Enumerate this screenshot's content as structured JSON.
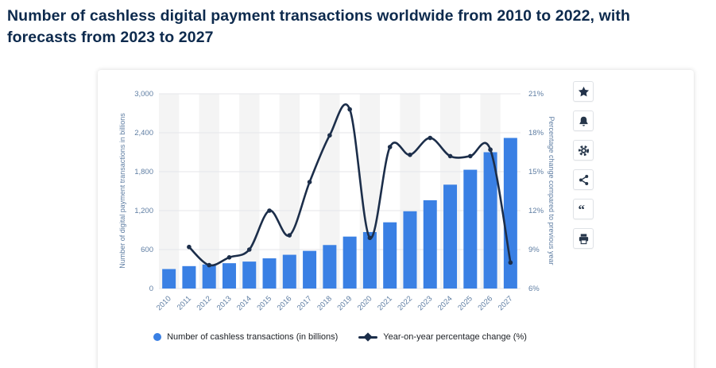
{
  "page": {
    "title": "Number of cashless digital payment transactions worldwide from 2010 to 2022, with forecasts from 2023 to 2027"
  },
  "chart_data": {
    "type": "combo (bar + line)",
    "categories": [
      "2010",
      "2011",
      "2012",
      "2013",
      "2014",
      "2015",
      "2016",
      "2017",
      "2018",
      "2019",
      "2020",
      "2021",
      "2022",
      "2023",
      "2024",
      "2025",
      "2026",
      "2027"
    ],
    "series": [
      {
        "name": "Number of cashless transactions (in billions)",
        "type": "bar",
        "axis": "left",
        "color": "#3a80e4",
        "values": [
          300,
          345,
          370,
          390,
          415,
          465,
          520,
          580,
          670,
          800,
          870,
          1020,
          1190,
          1360,
          1600,
          1830,
          2100,
          2320
        ]
      },
      {
        "name": "Year-on-year percentage change (%)",
        "type": "line",
        "axis": "right",
        "color": "#1c2e4a",
        "values": [
          null,
          9.2,
          7.8,
          8.4,
          9.0,
          12.0,
          10.1,
          14.2,
          17.8,
          19.8,
          9.9,
          16.9,
          16.3,
          17.6,
          16.2,
          16.2,
          16.7,
          8.0
        ]
      }
    ],
    "left_axis": {
      "label": "Number of digital payment transactions in billions",
      "min": 0,
      "max": 3000,
      "ticks": [
        "0",
        "600",
        "1,200",
        "1,800",
        "2,400",
        "3,000"
      ]
    },
    "right_axis": {
      "label": "Percentage change compared to previous year",
      "min": 6,
      "max": 21,
      "ticks": [
        "6%",
        "9%",
        "12%",
        "15%",
        "18%",
        "21%"
      ]
    },
    "legend_position": "bottom",
    "grid": true,
    "style": {
      "stripe": "#f4f4f4",
      "grid": "#e4e6ea",
      "tick_color": "#5f7ea3",
      "background": "#ffffff"
    }
  },
  "toolbar": {
    "buttons": [
      {
        "name": "favorite",
        "icon": "star-icon"
      },
      {
        "name": "notifications",
        "icon": "bell-icon"
      },
      {
        "name": "settings",
        "icon": "gear-icon"
      },
      {
        "name": "share",
        "icon": "share-icon"
      },
      {
        "name": "cite",
        "icon": "quote-icon"
      },
      {
        "name": "print",
        "icon": "printer-icon"
      }
    ]
  }
}
